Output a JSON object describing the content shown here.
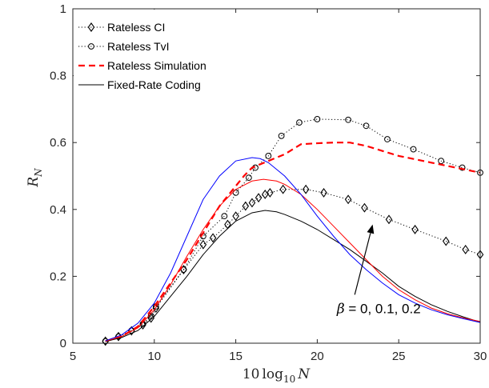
{
  "chart_data": {
    "type": "line",
    "xlim": [
      5,
      30
    ],
    "ylim": [
      0,
      1
    ],
    "xticks": [
      5,
      10,
      15,
      20,
      25,
      30
    ],
    "yticks": [
      0,
      0.2,
      0.4,
      0.6,
      0.8,
      1
    ],
    "xtick_labels": [
      "5",
      "10",
      "15",
      "20",
      "25",
      "30"
    ],
    "ytick_labels": [
      "0",
      "0.2",
      "0.4",
      "0.6",
      "0.8",
      "1"
    ],
    "xlabel": "10 log10 N",
    "xlabel_prefix": "10",
    "xlabel_func": "log",
    "xlabel_sub": "10",
    "xlabel_var": "N",
    "ylabel": "R_N",
    "ylabel_main": "R",
    "ylabel_sub": "N",
    "grid": false,
    "legend_position": "top-left",
    "series": [
      {
        "name": "Rateless CI",
        "color": "#000000",
        "style": "dotted",
        "marker": "diamond",
        "x": [
          7,
          7.8,
          8.6,
          9.3,
          9.8,
          10.1,
          11.8,
          13,
          13.6,
          14.5,
          15,
          15.6,
          16,
          16.4,
          16.8,
          17.1,
          17.9,
          19.3,
          20.4,
          21.9,
          22.9,
          24.4,
          26,
          27.9,
          29.1,
          30
        ],
        "y": [
          0.006,
          0.02,
          0.037,
          0.055,
          0.075,
          0.105,
          0.22,
          0.295,
          0.315,
          0.355,
          0.38,
          0.41,
          0.42,
          0.435,
          0.445,
          0.45,
          0.46,
          0.46,
          0.45,
          0.43,
          0.405,
          0.37,
          0.34,
          0.305,
          0.28,
          0.265
        ]
      },
      {
        "name": "Rateless TvI",
        "color": "#000000",
        "style": "dotted",
        "marker": "circle",
        "x": [
          7,
          7.8,
          8.6,
          9.3,
          9.8,
          10.1,
          11.8,
          13,
          14.3,
          15,
          15.8,
          16.2,
          17,
          17.8,
          18.9,
          20,
          21.9,
          23,
          24.3,
          25.9,
          27.6,
          28.9,
          30
        ],
        "y": [
          0.006,
          0.02,
          0.038,
          0.058,
          0.082,
          0.11,
          0.22,
          0.32,
          0.38,
          0.45,
          0.495,
          0.525,
          0.56,
          0.62,
          0.66,
          0.67,
          0.668,
          0.65,
          0.61,
          0.58,
          0.545,
          0.525,
          0.51
        ]
      },
      {
        "name": "Rateless Simulation",
        "color": "#ff0000",
        "style": "dashed",
        "marker": "none",
        "x": [
          7,
          8,
          9,
          10,
          11,
          12,
          13,
          14,
          15,
          15.5,
          16,
          17,
          18,
          19,
          20,
          21,
          22,
          23,
          24,
          25,
          26,
          27,
          28,
          29,
          30
        ],
        "y": [
          0.006,
          0.02,
          0.05,
          0.11,
          0.18,
          0.25,
          0.33,
          0.41,
          0.47,
          0.5,
          0.525,
          0.545,
          0.565,
          0.595,
          0.598,
          0.6,
          0.6,
          0.59,
          0.575,
          0.56,
          0.55,
          0.54,
          0.53,
          0.52,
          0.51
        ]
      },
      {
        "name": "Fixed-Rate Coding",
        "color": "#000000",
        "style": "solid",
        "marker": "none",
        "x": [
          7,
          8,
          9,
          10,
          11,
          12,
          13,
          14,
          15,
          16,
          16.8,
          17.5,
          18,
          19,
          20,
          21,
          22,
          23,
          24,
          25,
          26,
          27,
          28,
          29,
          30
        ],
        "y": [
          0.005,
          0.017,
          0.038,
          0.08,
          0.14,
          0.2,
          0.265,
          0.32,
          0.365,
          0.39,
          0.397,
          0.393,
          0.385,
          0.365,
          0.34,
          0.31,
          0.28,
          0.245,
          0.21,
          0.17,
          0.14,
          0.115,
          0.095,
          0.078,
          0.063
        ]
      },
      {
        "color": "#ff0000",
        "style": "solid",
        "marker": "none",
        "x": [
          7,
          8,
          9,
          10,
          11,
          12,
          13,
          14,
          15,
          16,
          16.7,
          17.5,
          18,
          19,
          20,
          21,
          22,
          23,
          24,
          25,
          26,
          27,
          28,
          29,
          30
        ],
        "y": [
          0.006,
          0.02,
          0.046,
          0.1,
          0.175,
          0.26,
          0.34,
          0.41,
          0.46,
          0.485,
          0.49,
          0.485,
          0.475,
          0.445,
          0.4,
          0.35,
          0.3,
          0.25,
          0.2,
          0.16,
          0.13,
          0.105,
          0.088,
          0.075,
          0.065
        ]
      },
      {
        "color": "#0000ff",
        "style": "solid",
        "marker": "none",
        "x": [
          7,
          8,
          9,
          10,
          11,
          12,
          13,
          14,
          15,
          16,
          16.5,
          17,
          18,
          19,
          20,
          21,
          22,
          23,
          24,
          25,
          26,
          27,
          28,
          29,
          30
        ],
        "y": [
          0.007,
          0.025,
          0.06,
          0.12,
          0.21,
          0.32,
          0.43,
          0.5,
          0.545,
          0.555,
          0.552,
          0.54,
          0.5,
          0.445,
          0.38,
          0.32,
          0.265,
          0.22,
          0.18,
          0.145,
          0.12,
          0.1,
          0.085,
          0.073,
          0.062
        ]
      }
    ],
    "annotations": [
      {
        "prefix": "β",
        "text": " = 0, 0.1, 0.2",
        "text_x": 21.2,
        "text_y": 0.09,
        "arrow_from": [
          22.3,
          0.145
        ],
        "arrow_to": [
          23.4,
          0.355
        ]
      }
    ]
  }
}
